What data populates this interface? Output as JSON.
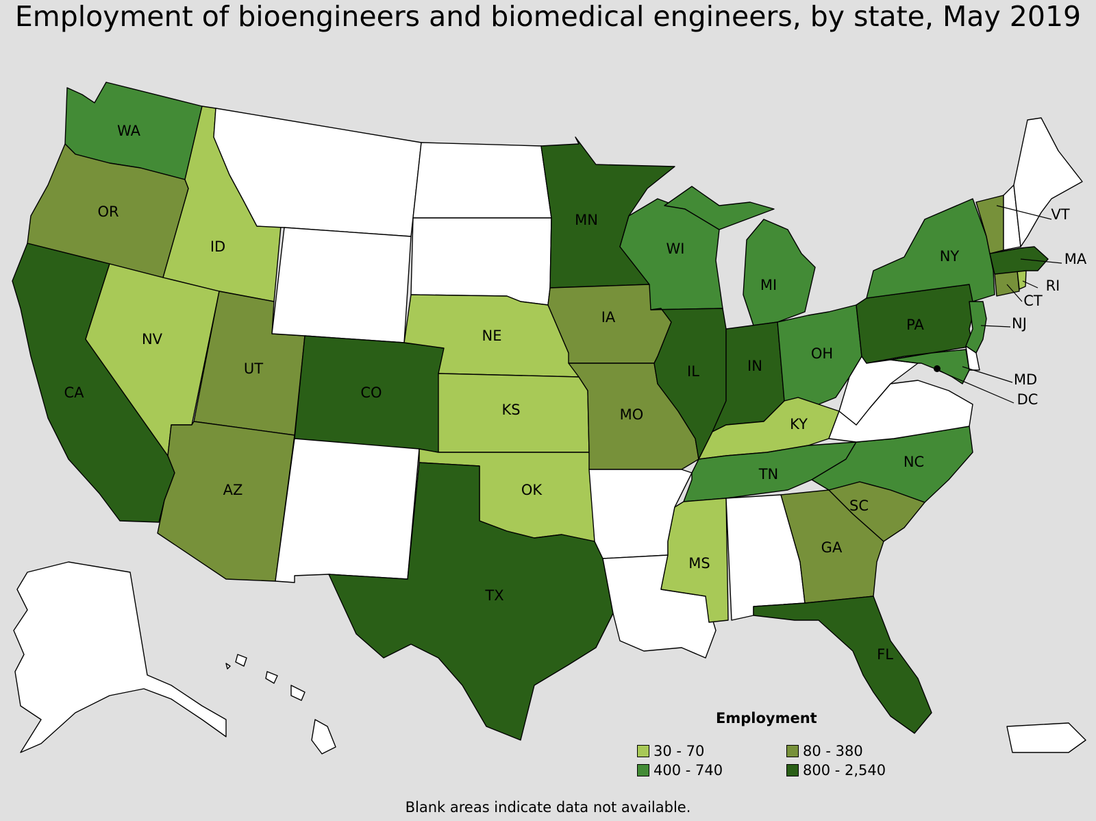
{
  "title": "Employment of bioengineers and biomedical engineers, by state, May 2019",
  "colors": {
    "background": "#e0e0e0",
    "no_data": "#ffffff",
    "bin1": "#a8c957",
    "bin2": "#77913a",
    "bin3": "#438b36",
    "bin4": "#2a5f17"
  },
  "legend": {
    "title": "Employment",
    "items": [
      {
        "label": "30 - 70",
        "color": "#a8c957"
      },
      {
        "label": "80 - 380",
        "color": "#77913a"
      },
      {
        "label": "400 - 740",
        "color": "#438b36"
      },
      {
        "label": "800 - 2,540",
        "color": "#2a5f17"
      }
    ]
  },
  "footnote": "Blank areas indicate data not available.",
  "states": {
    "WA": {
      "bin": 3
    },
    "OR": {
      "bin": 2
    },
    "CA": {
      "bin": 4
    },
    "ID": {
      "bin": 1
    },
    "NV": {
      "bin": 1
    },
    "UT": {
      "bin": 2
    },
    "AZ": {
      "bin": 2
    },
    "MT": {
      "bin": 0
    },
    "WY": {
      "bin": 0
    },
    "CO": {
      "bin": 4
    },
    "NM": {
      "bin": 0
    },
    "ND": {
      "bin": 0
    },
    "SD": {
      "bin": 0
    },
    "NE": {
      "bin": 1
    },
    "KS": {
      "bin": 1
    },
    "OK": {
      "bin": 1
    },
    "TX": {
      "bin": 4
    },
    "MN": {
      "bin": 4
    },
    "IA": {
      "bin": 2
    },
    "MO": {
      "bin": 2
    },
    "AR": {
      "bin": 0
    },
    "LA": {
      "bin": 0
    },
    "WI": {
      "bin": 3
    },
    "IL": {
      "bin": 4
    },
    "MI": {
      "bin": 3
    },
    "IN": {
      "bin": 4
    },
    "OH": {
      "bin": 3
    },
    "KY": {
      "bin": 1
    },
    "TN": {
      "bin": 3
    },
    "MS": {
      "bin": 1
    },
    "AL": {
      "bin": 0
    },
    "GA": {
      "bin": 2
    },
    "FL": {
      "bin": 4
    },
    "SC": {
      "bin": 2
    },
    "NC": {
      "bin": 3
    },
    "VA": {
      "bin": 0
    },
    "WV": {
      "bin": 0
    },
    "PA": {
      "bin": 4
    },
    "NY": {
      "bin": 3
    },
    "NJ": {
      "bin": 3
    },
    "MD": {
      "bin": 3
    },
    "DE": {
      "bin": 0
    },
    "DC": {
      "bin": 4
    },
    "CT": {
      "bin": 2
    },
    "RI": {
      "bin": 1
    },
    "MA": {
      "bin": 4
    },
    "VT": {
      "bin": 2
    },
    "NH": {
      "bin": 0
    },
    "ME": {
      "bin": 0
    },
    "AK": {
      "bin": 0
    },
    "HI": {
      "bin": 0
    },
    "PR": {
      "bin": 0
    }
  }
}
